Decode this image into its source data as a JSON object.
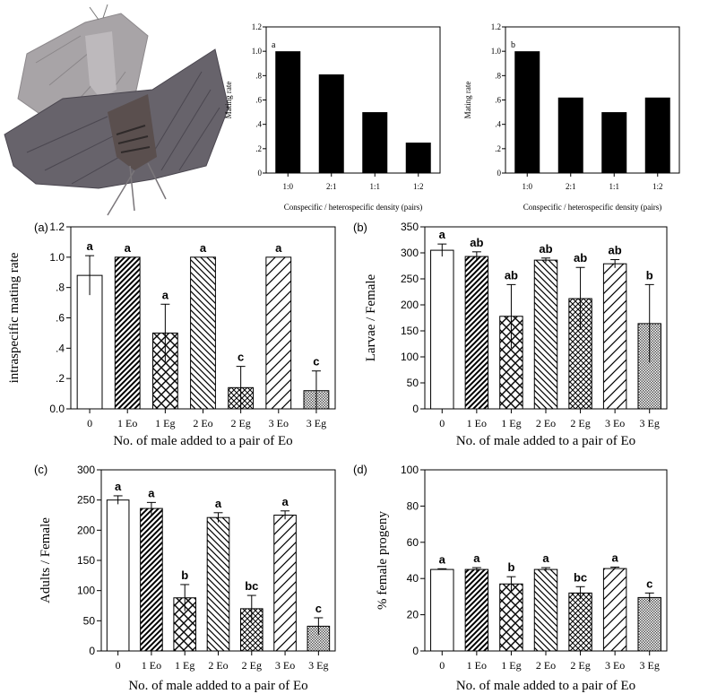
{
  "figure": {
    "small_charts": [
      {
        "panel": "a",
        "type": "bar",
        "categories": [
          "1:0",
          "2:1",
          "1:1",
          "1:2"
        ],
        "values": [
          1.0,
          0.81,
          0.5,
          0.25
        ],
        "ylabel": "Mating rate",
        "xlabel": "Conspecific / heterospecific density (pairs)",
        "ylim": [
          0,
          1.2
        ],
        "yticks": [
          0,
          0.2,
          0.4,
          0.6,
          0.8,
          1.0,
          1.2
        ],
        "ytick_labels": [
          "0",
          ".2",
          ".4",
          ".6",
          ".8",
          "1.0",
          "1.2"
        ]
      },
      {
        "panel": "b",
        "type": "bar",
        "categories": [
          "1:0",
          "2:1",
          "1:1",
          "1:2"
        ],
        "values": [
          1.0,
          0.62,
          0.5,
          0.62
        ],
        "ylabel": "Mating rate",
        "xlabel": "Conspecific / heterospecific density (pairs)",
        "ylim": [
          0,
          1.2
        ],
        "yticks": [
          0,
          0.2,
          0.4,
          0.6,
          0.8,
          1.0,
          1.2
        ],
        "ytick_labels": [
          "0",
          ".2",
          ".4",
          ".6",
          ".8",
          "1.0",
          "1.2"
        ]
      }
    ],
    "big_charts": [
      {
        "panel": "(a)",
        "type": "bar",
        "categories": [
          "0",
          "1 Eo",
          "1 Eg",
          "2 Eo",
          "2 Eg",
          "3 Eo",
          "3 Eg"
        ],
        "values": [
          0.88,
          1.0,
          0.5,
          1.0,
          0.14,
          1.0,
          0.12
        ],
        "errors": [
          0.13,
          0,
          0.19,
          0,
          0.14,
          0,
          0.13
        ],
        "letters": [
          "a",
          "a",
          "a",
          "a",
          "c",
          "a",
          "c"
        ],
        "ylabel": "intraspecific mating rate",
        "xlabel": "No. of male added to a pair of Eo",
        "ylim": [
          0,
          1.2
        ],
        "yticks": [
          0,
          0.2,
          0.4,
          0.6,
          0.8,
          1.0,
          1.2
        ],
        "ytick_labels": [
          "0.0",
          ".2",
          ".4",
          ".6",
          ".8",
          "1.0",
          "1.2"
        ]
      },
      {
        "panel": "(b)",
        "type": "bar",
        "categories": [
          "0",
          "1 Eo",
          "1 Eg",
          "2 Eo",
          "2 Eg",
          "3 Eo",
          "3 Eg"
        ],
        "values": [
          305,
          293,
          178,
          286,
          212,
          279,
          164
        ],
        "errors": [
          12,
          9,
          61,
          4,
          60,
          8,
          75
        ],
        "letters": [
          "a",
          "ab",
          "ab",
          "ab",
          "ab",
          "ab",
          "b"
        ],
        "ylabel": "Larvae / Female",
        "xlabel": "No. of male added to a pair of Eo",
        "ylim": [
          0,
          350
        ],
        "yticks": [
          0,
          50,
          100,
          150,
          200,
          250,
          300,
          350
        ],
        "ytick_labels": [
          "0",
          "50",
          "100",
          "150",
          "200",
          "250",
          "300",
          "350"
        ]
      },
      {
        "panel": "(c)",
        "type": "bar",
        "categories": [
          "0",
          "1 Eo",
          "1 Eg",
          "2 Eo",
          "2 Eg",
          "3 Eo",
          "3 Eg"
        ],
        "values": [
          250,
          236,
          88,
          221,
          70,
          225,
          41
        ],
        "errors": [
          7,
          10,
          22,
          8,
          22,
          7,
          14
        ],
        "letters": [
          "a",
          "a",
          "b",
          "a",
          "bc",
          "a",
          "c"
        ],
        "ylabel": "Adults / Female",
        "xlabel": "No. of male added to a pair of Eo",
        "ylim": [
          0,
          300
        ],
        "yticks": [
          0,
          50,
          100,
          150,
          200,
          250,
          300
        ],
        "ytick_labels": [
          "0",
          "50",
          "100",
          "150",
          "200",
          "250",
          "300"
        ]
      },
      {
        "panel": "(d)",
        "type": "bar",
        "categories": [
          "0",
          "1 Eo",
          "1 Eg",
          "2 Eo",
          "2 Eg",
          "3 Eo",
          "3 Eg"
        ],
        "values": [
          45,
          45,
          37,
          45,
          32,
          45.5,
          29.5
        ],
        "errors": [
          0.4,
          1,
          4,
          1,
          3.5,
          0.8,
          2.5
        ],
        "letters": [
          "a",
          "a",
          "b",
          "a",
          "bc",
          "a",
          "c"
        ],
        "ylabel": "% female progeny",
        "xlabel": "No. of male added to a pair of Eo",
        "ylim": [
          0,
          100
        ],
        "yticks": [
          0,
          20,
          40,
          60,
          80,
          100
        ],
        "ytick_labels": [
          "0",
          "20",
          "40",
          "60",
          "80",
          "100"
        ]
      }
    ]
  },
  "colors": {
    "bar_fill": "#000000",
    "axis": "#000000",
    "moth_light": "#a6a2a4",
    "moth_dark": "#5e5a62"
  }
}
